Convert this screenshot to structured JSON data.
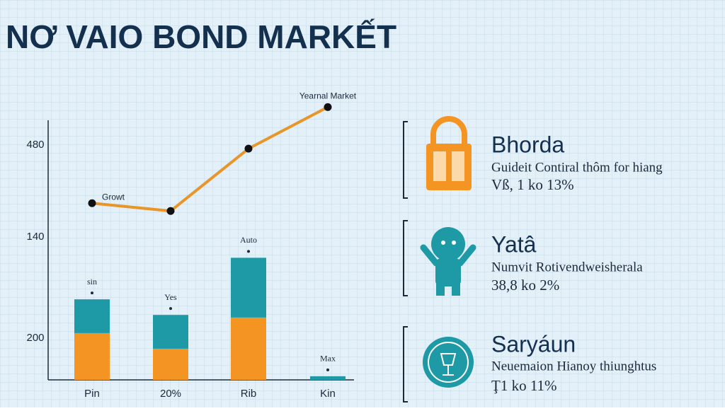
{
  "title": "NƠ VAIO BOND MARKẾT",
  "chart_data": {
    "type": "bar",
    "stacked": true,
    "categories": [
      "Pin",
      "20%",
      "Rib",
      "Kin"
    ],
    "y_axis_labels": [
      "480",
      "140",
      "200"
    ],
    "ylim": [
      0,
      110
    ],
    "series": [
      {
        "color": "#f39423",
        "values": [
          18,
          12,
          24,
          0
        ]
      },
      {
        "color": "#1d9aa6",
        "values": [
          13,
          13,
          23,
          1.4
        ]
      }
    ],
    "bar_labels": [
      "sin",
      "Yes",
      "Auto",
      "Max"
    ],
    "line": {
      "color": "#e8952a",
      "values": [
        68,
        65,
        89,
        105
      ],
      "point_labels": [
        "Growt",
        null,
        null,
        "Yearnal Market"
      ]
    }
  },
  "panel": {
    "items": [
      {
        "title": "Bhorda",
        "text": "Guideit Contiral thôm for hiang",
        "range": "Vß, 1 ko 13%"
      },
      {
        "title": "Yatâ",
        "text": "Numvit Rotivendweisherala",
        "range": "38,8 ko 2%"
      },
      {
        "title": "Saryáun",
        "text": "Neuemaion Hianoy thiunghtus",
        "range": "Ţ1 ko 11%"
      }
    ]
  }
}
